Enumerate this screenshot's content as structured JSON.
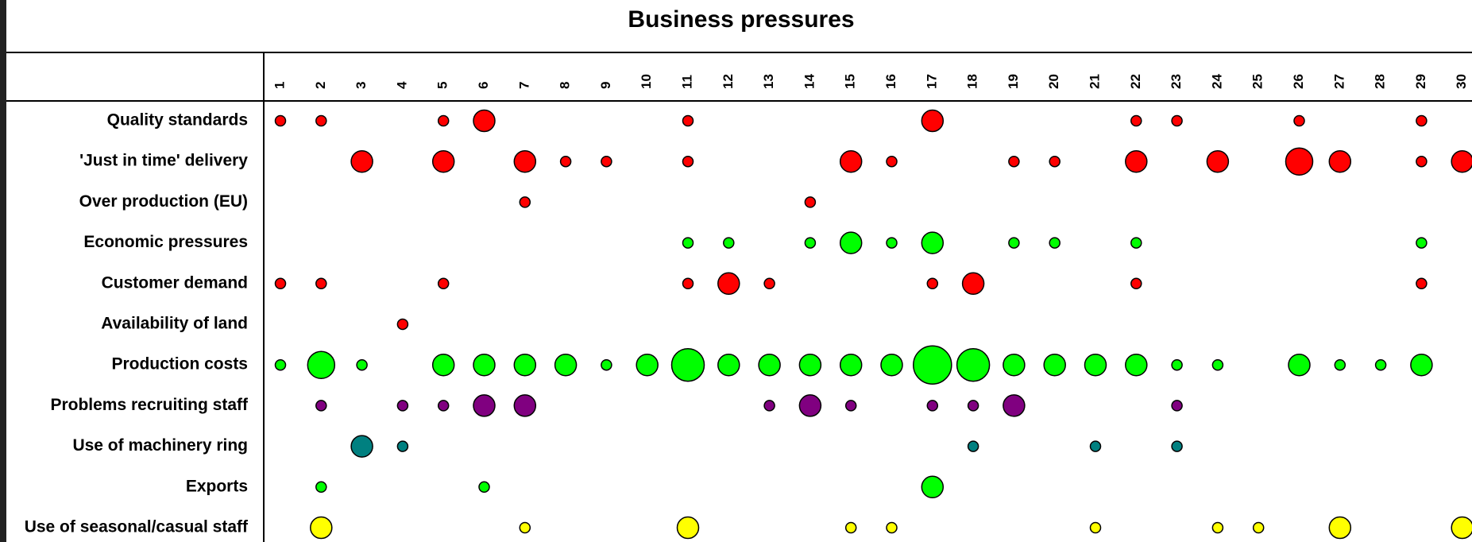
{
  "chart_data": {
    "type": "scatter",
    "title": "Business pressures",
    "columns": [
      "1",
      "2",
      "3",
      "4",
      "5",
      "6",
      "7",
      "8",
      "9",
      "10",
      "11",
      "12",
      "13",
      "14",
      "15",
      "16",
      "17",
      "18",
      "19",
      "20",
      "21",
      "22",
      "23",
      "24",
      "25",
      "26",
      "27",
      "28",
      "29",
      "30"
    ],
    "rows": [
      {
        "label": "Quality standards",
        "color": "#ff0000",
        "points": [
          [
            1,
            1
          ],
          [
            2,
            1
          ],
          [
            5,
            1
          ],
          [
            6,
            3
          ],
          [
            11,
            1
          ],
          [
            17,
            3
          ],
          [
            22,
            1
          ],
          [
            23,
            1
          ],
          [
            26,
            1
          ],
          [
            29,
            1
          ]
        ]
      },
      {
        "label": "'Just in time' delivery",
        "color": "#ff0000",
        "points": [
          [
            3,
            3
          ],
          [
            5,
            3
          ],
          [
            7,
            3
          ],
          [
            8,
            1
          ],
          [
            9,
            1
          ],
          [
            11,
            1
          ],
          [
            15,
            3
          ],
          [
            16,
            1
          ],
          [
            19,
            1
          ],
          [
            20,
            1
          ],
          [
            22,
            3
          ],
          [
            24,
            3
          ],
          [
            26,
            4
          ],
          [
            27,
            3
          ],
          [
            29,
            1
          ],
          [
            30,
            3
          ]
        ]
      },
      {
        "label": "Over production (EU)",
        "color": "#ff0000",
        "points": [
          [
            7,
            1
          ],
          [
            14,
            1
          ]
        ]
      },
      {
        "label": "Economic pressures",
        "color": "#00ff00",
        "points": [
          [
            11,
            1
          ],
          [
            12,
            1
          ],
          [
            14,
            1
          ],
          [
            15,
            3
          ],
          [
            16,
            1
          ],
          [
            17,
            3
          ],
          [
            19,
            1
          ],
          [
            20,
            1
          ],
          [
            22,
            1
          ],
          [
            29,
            1
          ]
        ]
      },
      {
        "label": "Customer demand",
        "color": "#ff0000",
        "points": [
          [
            1,
            1
          ],
          [
            2,
            1
          ],
          [
            5,
            1
          ],
          [
            11,
            1
          ],
          [
            12,
            3
          ],
          [
            13,
            1
          ],
          [
            17,
            1
          ],
          [
            18,
            3
          ],
          [
            22,
            1
          ],
          [
            29,
            1
          ]
        ]
      },
      {
        "label": "Availability of land",
        "color": "#ff0000",
        "points": [
          [
            4,
            1
          ]
        ]
      },
      {
        "label": "Production costs",
        "color": "#00ff00",
        "points": [
          [
            1,
            1
          ],
          [
            2,
            4
          ],
          [
            3,
            1
          ],
          [
            5,
            3
          ],
          [
            6,
            3
          ],
          [
            7,
            3
          ],
          [
            8,
            3
          ],
          [
            9,
            1
          ],
          [
            10,
            3
          ],
          [
            11,
            5
          ],
          [
            12,
            3
          ],
          [
            13,
            3
          ],
          [
            14,
            3
          ],
          [
            15,
            3
          ],
          [
            16,
            3
          ],
          [
            17,
            6
          ],
          [
            18,
            5
          ],
          [
            19,
            3
          ],
          [
            20,
            3
          ],
          [
            21,
            3
          ],
          [
            22,
            3
          ],
          [
            23,
            1
          ],
          [
            24,
            1
          ],
          [
            26,
            3
          ],
          [
            27,
            1
          ],
          [
            28,
            1
          ],
          [
            29,
            3
          ]
        ]
      },
      {
        "label": "Problems recruiting staff",
        "color": "#800080",
        "points": [
          [
            2,
            1
          ],
          [
            4,
            1
          ],
          [
            5,
            1
          ],
          [
            6,
            3
          ],
          [
            7,
            3
          ],
          [
            13,
            1
          ],
          [
            14,
            3
          ],
          [
            15,
            1
          ],
          [
            17,
            1
          ],
          [
            18,
            1
          ],
          [
            19,
            3
          ],
          [
            23,
            1
          ]
        ]
      },
      {
        "label": "Use of machinery ring",
        "color": "#008080",
        "points": [
          [
            3,
            3
          ],
          [
            4,
            1
          ],
          [
            18,
            1
          ],
          [
            21,
            1
          ],
          [
            23,
            1
          ]
        ]
      },
      {
        "label": "Exports",
        "color": "#00ff00",
        "points": [
          [
            2,
            1
          ],
          [
            6,
            1
          ],
          [
            17,
            3
          ]
        ]
      },
      {
        "label": "Use of seasonal/casual staff",
        "color": "#ffff00",
        "points": [
          [
            2,
            3
          ],
          [
            7,
            1
          ],
          [
            11,
            3
          ],
          [
            15,
            1
          ],
          [
            16,
            1
          ],
          [
            21,
            1
          ],
          [
            24,
            1
          ],
          [
            25,
            1
          ],
          [
            27,
            3
          ],
          [
            30,
            3
          ]
        ]
      }
    ]
  }
}
